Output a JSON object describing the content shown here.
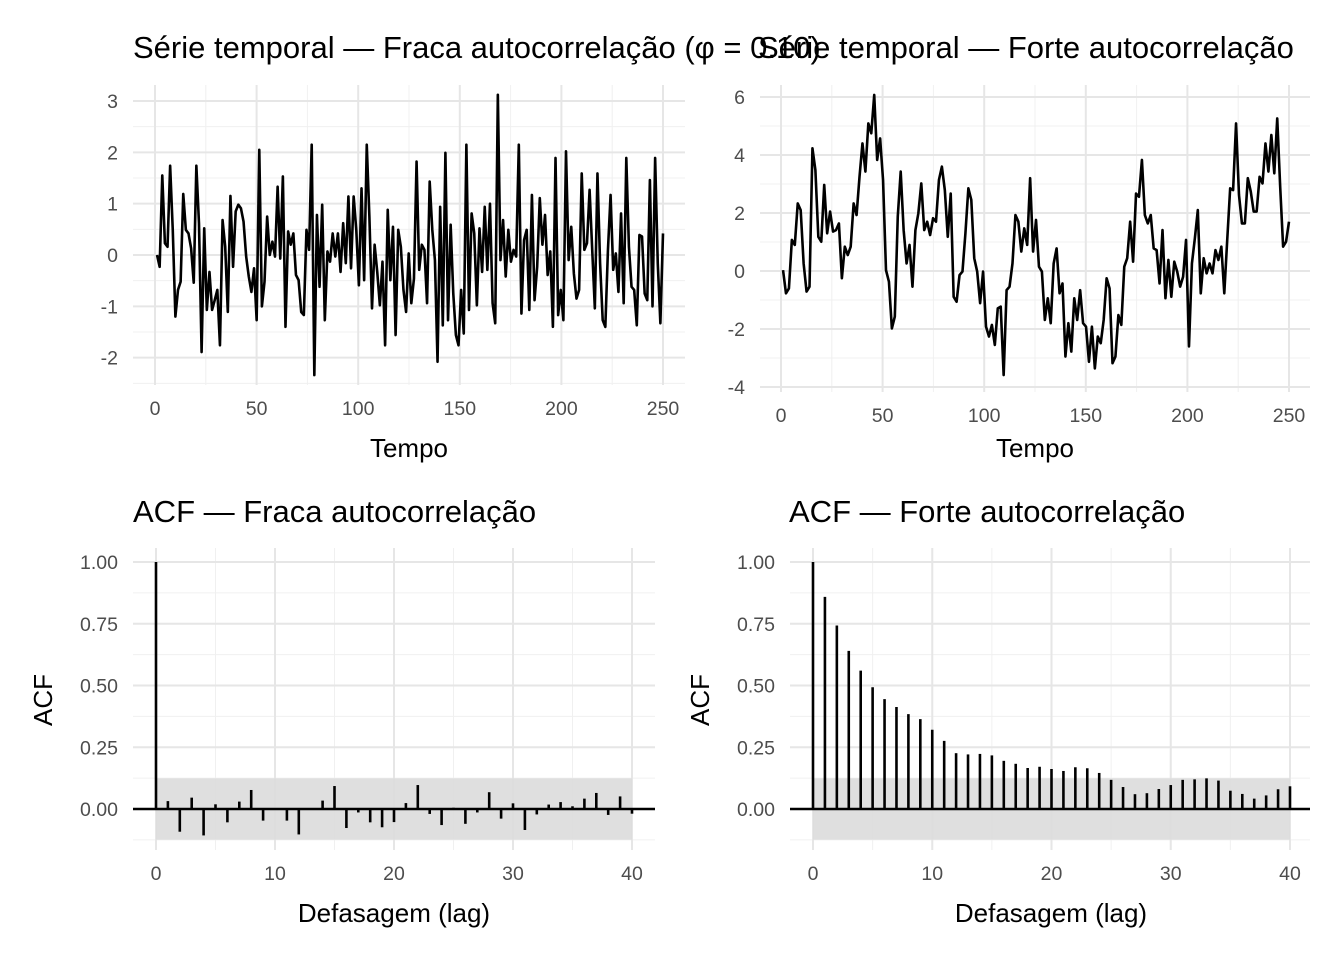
{
  "chart_data": [
    {
      "type": "line",
      "title": "Série temporal — Fraca autocorrelação (φ = 0.10)",
      "xlabel": "Tempo",
      "ylabel": "",
      "xlim": [
        1,
        250
      ],
      "ylim": [
        -2.5,
        3.3
      ],
      "xticks": [
        "0",
        "50",
        "100",
        "150",
        "200",
        "250"
      ],
      "yticks": [
        "-2",
        "-1",
        "0",
        "1",
        "2",
        "3"
      ],
      "grid": true,
      "color": "#000000",
      "values": [
        0,
        -0.23,
        1.55,
        0.23,
        0.16,
        1.74,
        0.49,
        -1.2,
        -0.68,
        -0.52,
        1.19,
        0.49,
        0.42,
        0.13,
        -0.54,
        1.74,
        0.62,
        -1.89,
        0.52,
        -1.07,
        -0.33,
        -1.07,
        -0.88,
        -0.68,
        -1.76,
        0.68,
        0.16,
        -1.11,
        1.15,
        -0.23,
        0.85,
        0.98,
        0.91,
        0.65,
        -0.03,
        -0.42,
        -0.72,
        -0.26,
        -1.27,
        2.05,
        -1.0,
        -0.52,
        0.75,
        0,
        0.26,
        -0.03,
        1.33,
        -0.07,
        1.53,
        -1.4,
        0.46,
        0.2,
        0.42,
        -0.39,
        -0.49,
        -1.11,
        -1.17,
        0.49,
        0.1,
        2.15,
        -2.34,
        0.78,
        -0.62,
        0.98,
        -1.27,
        0.07,
        -0.13,
        0.42,
        -0.03,
        0.42,
        -0.33,
        0.62,
        -0.16,
        1.14,
        -0.26,
        1.14,
        0.49,
        -0.59,
        1.3,
        -0.49,
        2.15,
        0.75,
        -1.04,
        0.2,
        -0.33,
        -0.98,
        -0.13,
        -1.76,
        0.88,
        -0.49,
        0.55,
        -1.56,
        0.49,
        0.16,
        -0.68,
        -1.11,
        0.03,
        -0.94,
        -0.46,
        1.82,
        -0.29,
        0.2,
        0.1,
        -0.94,
        1.43,
        0.49,
        -0.1,
        -2.08,
        0.94,
        -1.37,
        1.99,
        -1.27,
        0.59,
        -0.75,
        -1.56,
        -1.76,
        -0.68,
        -1.53,
        2.15,
        -1.07,
        0.81,
        0.42,
        -0.98,
        0.52,
        -0.33,
        0.94,
        -0.29,
        1.0,
        -0.94,
        -1.33,
        3.12,
        -0.1,
        0.68,
        -0.42,
        0.49,
        -0.13,
        0.1,
        -0.03,
        2.15,
        -1.14,
        0.29,
        0.49,
        -1.07,
        1.17,
        -0.88,
        -0.23,
        1.11,
        0.2,
        0.78,
        -0.39,
        0.07,
        -1.4,
        1.89,
        -1.17,
        -0.68,
        -1.27,
        2.02,
        -0.1,
        0.55,
        -0.36,
        -0.85,
        -0.68,
        1.59,
        0.1,
        0.23,
        1.27,
        0.1,
        -1.04,
        1.59,
        -0.16,
        -1.27,
        -1.4,
        0.1,
        1.17,
        -0.29,
        0.03,
        -0.72,
        0.81,
        -0.94,
        1.89,
        0.16,
        -0.62,
        -0.68,
        -1.37,
        0.39,
        0.36,
        -0.75,
        -0.88,
        1.46,
        -1.0,
        1.89,
        -0.16,
        -1.33,
        0.42
      ]
    },
    {
      "type": "line",
      "title": "Série temporal — Forte autocorrelação",
      "xlabel": "Tempo",
      "ylabel": "",
      "xlim": [
        1,
        250
      ],
      "ylim": [
        -4.1,
        6.3
      ],
      "xticks": [
        "0",
        "50",
        "100",
        "150",
        "200",
        "250"
      ],
      "yticks": [
        "-4",
        "-2",
        "0",
        "2",
        "4",
        "6"
      ],
      "grid": true,
      "color": "#000000",
      "values": [
        0.03,
        -0.77,
        -0.6,
        1.07,
        0.9,
        2.33,
        2.1,
        0.26,
        -0.71,
        -0.54,
        4.23,
        3.48,
        1.18,
        1.01,
        2.97,
        1.3,
        2.05,
        1.36,
        1.41,
        1.64,
        -0.25,
        0.84,
        0.55,
        0.84,
        2.33,
        1.93,
        3.25,
        4.4,
        3.43,
        5.09,
        4.75,
        6.07,
        3.83,
        4.57,
        3.14,
        0.03,
        -0.37,
        -1.98,
        -1.57,
        1.87,
        3.43,
        1.41,
        0.26,
        0.9,
        -0.54,
        1.41,
        1.99,
        3.02,
        1.41,
        1.7,
        1.24,
        1.82,
        1.7,
        3.14,
        3.6,
        2.79,
        1.18,
        2.67,
        -0.89,
        -1.06,
        -0.14,
        -0.02,
        1.3,
        2.85,
        2.45,
        0.44,
        -0.02,
        -1.11,
        -0.02,
        -1.92,
        -2.26,
        -1.86,
        -2.55,
        -1.29,
        -1.23,
        -3.59,
        -0.66,
        -0.54,
        0.26,
        1.93,
        1.7,
        0.67,
        1.47,
        0.9,
        3.2,
        0.67,
        1.76,
        0.15,
        -0.02,
        -1.69,
        -0.94,
        -1.8,
        0.26,
        0.78,
        -0.77,
        -0.43,
        -2.95,
        -1.8,
        -2.78,
        -0.94,
        -1.69,
        -0.66,
        -1.8,
        -1.92,
        -3.13,
        -1.92,
        -3.36,
        -2.26,
        -2.49,
        -1.69,
        -0.25,
        -0.6,
        -3.18,
        -2.95,
        -1.52,
        -1.86,
        0.15,
        0.44,
        1.7,
        0.32,
        2.67,
        2.56,
        3.83,
        1.93,
        1.64,
        1.93,
        0.78,
        0.72,
        -0.43,
        1.41,
        -0.94,
        0.38,
        -0.89,
        0.32,
        -0.02,
        -0.54,
        -0.2,
        1.07,
        -2.6,
        0.26,
        1.13,
        2.1,
        -0.77,
        0.44,
        -0.08,
        0.26,
        -0.08,
        0.72,
        0.38,
        0.84,
        -0.77,
        1.07,
        2.85,
        2.79,
        5.09,
        2.62,
        1.64,
        1.64,
        3.2,
        2.74,
        2.05,
        2.05,
        3.25,
        3.02,
        4.4,
        3.43,
        4.69,
        3.37,
        5.26,
        2.91,
        0.84,
        1.01,
        1.7
      ]
    },
    {
      "type": "bar",
      "title": "ACF — Fraca autocorrelação",
      "xlabel": "Defasagem (lag)",
      "ylabel": "ACF",
      "xlim": [
        0,
        40
      ],
      "ylim": [
        -0.13,
        1.05
      ],
      "xticks": [
        "0",
        "10",
        "20",
        "30",
        "40"
      ],
      "yticks": [
        "0.00",
        "0.25",
        "0.50",
        "0.75",
        "1.00"
      ],
      "grid": true,
      "confidence_band": 0.124,
      "band_color": "#dcdcdc",
      "values": [
        1.0,
        0.032,
        -0.092,
        0.046,
        -0.107,
        0.019,
        -0.054,
        0.03,
        0.077,
        -0.047,
        0.002,
        -0.047,
        -0.103,
        0.001,
        0.034,
        0.093,
        -0.077,
        -0.014,
        -0.054,
        -0.074,
        -0.053,
        0.024,
        0.097,
        -0.02,
        -0.065,
        0.005,
        -0.06,
        -0.014,
        0.068,
        -0.039,
        0.023,
        -0.085,
        -0.022,
        0.018,
        0.028,
        0.011,
        0.042,
        0.065,
        -0.024,
        0.051,
        -0.019
      ]
    },
    {
      "type": "bar",
      "title": "ACF — Forte autocorrelação",
      "xlabel": "Defasagem (lag)",
      "ylabel": "ACF",
      "xlim": [
        0,
        40
      ],
      "ylim": [
        -0.13,
        1.05
      ],
      "xticks": [
        "0",
        "10",
        "20",
        "30",
        "40"
      ],
      "yticks": [
        "0.00",
        "0.25",
        "0.50",
        "0.75",
        "1.00"
      ],
      "grid": true,
      "confidence_band": 0.124,
      "band_color": "#dcdcdc",
      "values": [
        1.0,
        0.859,
        0.743,
        0.64,
        0.56,
        0.493,
        0.445,
        0.413,
        0.384,
        0.364,
        0.321,
        0.276,
        0.226,
        0.221,
        0.223,
        0.217,
        0.195,
        0.183,
        0.166,
        0.171,
        0.162,
        0.154,
        0.169,
        0.165,
        0.146,
        0.118,
        0.089,
        0.06,
        0.064,
        0.081,
        0.097,
        0.118,
        0.12,
        0.124,
        0.115,
        0.074,
        0.061,
        0.042,
        0.055,
        0.08,
        0.092
      ]
    }
  ]
}
